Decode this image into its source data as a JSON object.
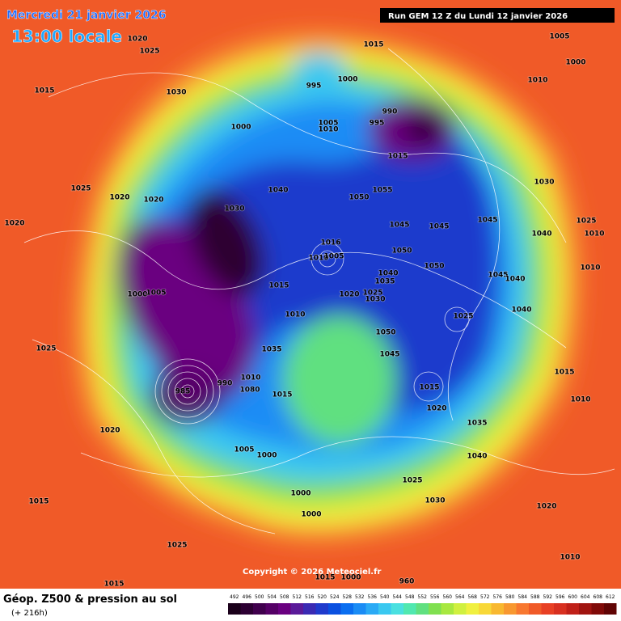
{
  "header": {
    "date_line": "Mercredi 21 janvier 2026",
    "time_line": "13:00 locale",
    "run_info": "Run GEM 12 Z du Lundi 12 janvier 2026"
  },
  "map": {
    "isobar_labels": [
      1020,
      1025,
      1030,
      1015,
      995,
      1000,
      1015,
      1005,
      1000,
      1010,
      990,
      995,
      1005,
      1010,
      1000,
      1015,
      1030,
      1040,
      1050,
      1055,
      1030,
      1020,
      1020,
      1025,
      1020,
      1045,
      1045,
      1045,
      1025,
      1010,
      1040,
      1010,
      1016,
      1010,
      1005,
      1050,
      1050,
      1040,
      1035,
      1045,
      1040,
      1015,
      1000,
      1005,
      1020,
      1025,
      1030,
      1010,
      1040,
      1025,
      1025,
      1050,
      1045,
      1035,
      1015,
      1010,
      1015,
      1080,
      1015,
      1010,
      1020,
      1035,
      1020,
      1005,
      1000,
      1040,
      1000,
      1025,
      1030,
      1015,
      1020,
      1000,
      1025,
      1010,
      1015,
      1015,
      1000,
      960,
      985,
      990
    ],
    "copyright": "Copyright © 2026 Meteociel.fr"
  },
  "legend": {
    "title": "Géop. Z500 & pression au sol",
    "lead_time": "(+ 216h)",
    "levels": [
      492,
      496,
      500,
      504,
      508,
      512,
      516,
      520,
      524,
      528,
      532,
      536,
      540,
      544,
      548,
      552,
      556,
      560,
      564,
      568,
      572,
      576,
      580,
      584,
      588,
      592,
      596,
      600,
      604,
      608,
      612
    ],
    "colors": [
      "#1a001a",
      "#2d0033",
      "#40004d",
      "#550066",
      "#6a0080",
      "#5a1a99",
      "#3a2ab3",
      "#1f3acc",
      "#0a50e0",
      "#0a6ef0",
      "#1a8cf5",
      "#2aaaf5",
      "#3ac8f0",
      "#4ae0e0",
      "#50e8b0",
      "#60e080",
      "#80e050",
      "#a8e840",
      "#d0f040",
      "#f0f040",
      "#f8d838",
      "#f8b830",
      "#f89830",
      "#f87830",
      "#f05a28",
      "#e84024",
      "#d83020",
      "#c02018",
      "#a01410",
      "#800a08",
      "#600404"
    ]
  }
}
